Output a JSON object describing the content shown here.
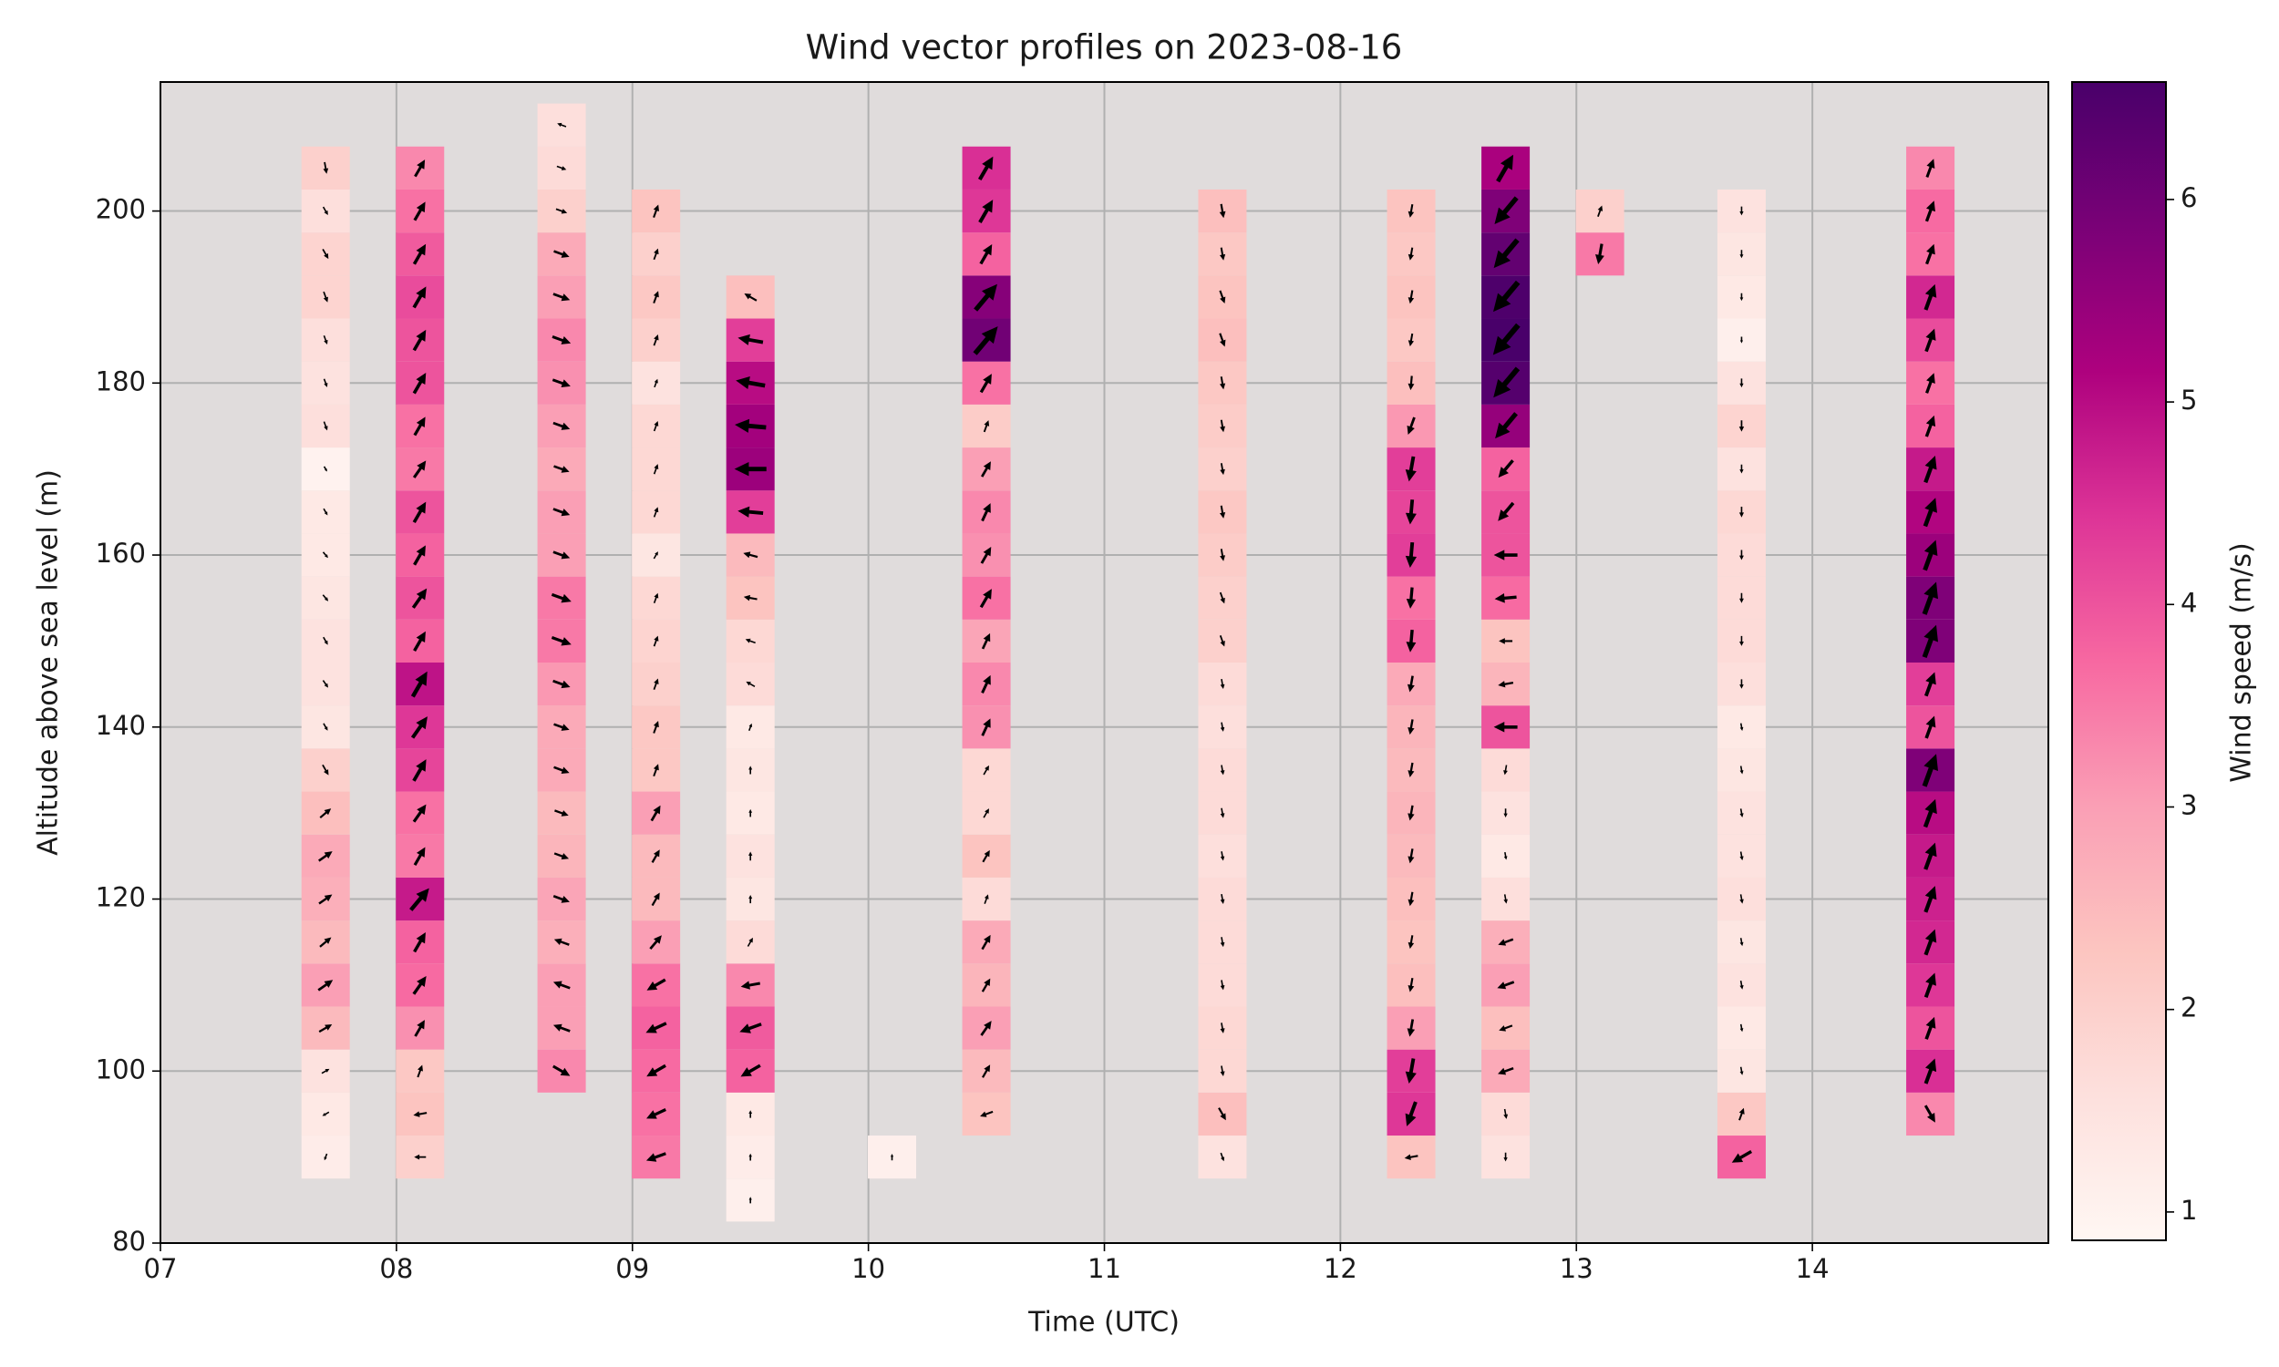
{
  "chart_data": {
    "type": "wind-profile",
    "title": "Wind vector profiles on 2023-08-16",
    "xlabel": "Time (UTC)",
    "ylabel": "Altitude above sea level (m)",
    "colorbar_label": "Wind speed (m/s)",
    "colormap": "RdPu",
    "clim": [
      0.86,
      6.58
    ],
    "cticks": [
      1,
      2,
      3,
      4,
      5,
      6
    ],
    "xlim": [
      7,
      15
    ],
    "xticks": [
      {
        "value": 7,
        "label": "07"
      },
      {
        "value": 8,
        "label": "08"
      },
      {
        "value": 9,
        "label": "09"
      },
      {
        "value": 10,
        "label": "10"
      },
      {
        "value": 11,
        "label": "11"
      },
      {
        "value": 12,
        "label": "12"
      },
      {
        "value": 13,
        "label": "13"
      },
      {
        "value": 14,
        "label": "14"
      }
    ],
    "ylim": [
      80,
      215
    ],
    "yticks": [
      80,
      100,
      120,
      140,
      160,
      180,
      200
    ],
    "grid": true,
    "profiles": [
      {
        "time": 7.7,
        "altitudes": [
          90,
          95,
          100,
          105,
          110,
          115,
          120,
          125,
          130,
          135,
          140,
          145,
          150,
          155,
          160,
          165,
          170,
          175,
          180,
          185,
          190,
          195,
          200,
          205
        ],
        "speeds": [
          1.2,
          1.3,
          1.5,
          2.5,
          3.0,
          2.5,
          2.7,
          2.8,
          2.4,
          2.0,
          1.4,
          1.5,
          1.5,
          1.4,
          1.3,
          1.3,
          1.0,
          1.6,
          1.5,
          1.6,
          1.9,
          1.9,
          1.6,
          2.0
        ],
        "directions": [
          200,
          240,
          60,
          60,
          55,
          50,
          55,
          55,
          50,
          150,
          150,
          145,
          150,
          140,
          140,
          150,
          150,
          160,
          160,
          160,
          160,
          150,
          150,
          170
        ]
      },
      {
        "time": 8.1,
        "altitudes": [
          90,
          95,
          100,
          105,
          110,
          115,
          120,
          125,
          130,
          135,
          140,
          145,
          150,
          155,
          160,
          165,
          170,
          175,
          180,
          185,
          190,
          195,
          200,
          205
        ],
        "speeds": [
          2.0,
          2.3,
          2.2,
          3.2,
          3.7,
          3.8,
          4.8,
          3.5,
          3.6,
          4.2,
          4.4,
          4.9,
          3.8,
          4.0,
          3.8,
          4.0,
          3.5,
          3.6,
          4.0,
          4.0,
          4.1,
          3.9,
          3.6,
          3.3
        ],
        "directions": [
          270,
          260,
          20,
          30,
          35,
          30,
          40,
          30,
          35,
          30,
          35,
          30,
          30,
          35,
          30,
          30,
          35,
          30,
          30,
          30,
          30,
          30,
          30,
          30
        ]
      },
      {
        "time": 8.7,
        "altitudes": [
          100,
          105,
          110,
          115,
          120,
          125,
          130,
          135,
          140,
          145,
          150,
          155,
          160,
          165,
          170,
          175,
          180,
          185,
          190,
          195,
          200,
          205,
          210
        ],
        "speeds": [
          3.3,
          3.0,
          3.0,
          2.7,
          2.9,
          2.6,
          2.5,
          2.8,
          2.8,
          3.1,
          3.5,
          3.5,
          3.0,
          3.0,
          2.8,
          3.0,
          3.2,
          3.3,
          3.0,
          2.8,
          2.0,
          1.7,
          1.6
        ],
        "directions": [
          120,
          290,
          290,
          290,
          110,
          110,
          110,
          110,
          110,
          110,
          110,
          110,
          110,
          110,
          110,
          110,
          110,
          110,
          110,
          110,
          110,
          110,
          290
        ]
      },
      {
        "time": 9.1,
        "altitudes": [
          90,
          95,
          100,
          105,
          110,
          115,
          120,
          125,
          130,
          135,
          140,
          145,
          150,
          155,
          160,
          165,
          170,
          175,
          180,
          185,
          190,
          195,
          200
        ],
        "speeds": [
          3.5,
          3.6,
          3.7,
          3.8,
          3.6,
          3.0,
          2.5,
          2.5,
          3.0,
          2.2,
          2.2,
          2.0,
          1.9,
          1.8,
          1.4,
          1.8,
          1.8,
          1.8,
          1.5,
          2.0,
          2.2,
          2.0,
          2.3
        ],
        "directions": [
          250,
          245,
          240,
          245,
          240,
          40,
          30,
          30,
          30,
          20,
          20,
          20,
          20,
          20,
          30,
          20,
          20,
          20,
          20,
          20,
          20,
          20,
          20
        ]
      },
      {
        "time": 9.5,
        "altitudes": [
          85,
          90,
          95,
          100,
          105,
          110,
          115,
          120,
          125,
          130,
          135,
          140,
          145,
          150,
          155,
          160,
          165,
          170,
          175,
          180,
          185,
          190
        ],
        "speeds": [
          1.1,
          1.2,
          1.3,
          3.8,
          3.9,
          3.3,
          1.7,
          1.4,
          1.5,
          1.3,
          1.4,
          1.3,
          1.7,
          1.8,
          2.3,
          2.5,
          4.3,
          5.4,
          5.3,
          5.0,
          4.3,
          2.4
        ],
        "directions": [
          0,
          0,
          0,
          240,
          250,
          260,
          30,
          0,
          0,
          0,
          0,
          20,
          300,
          290,
          280,
          285,
          275,
          270,
          275,
          280,
          280,
          300
        ]
      },
      {
        "time": 10.1,
        "altitudes": [
          90
        ],
        "speeds": [
          1.1
        ],
        "directions": [
          0
        ]
      },
      {
        "time": 10.5,
        "altitudes": [
          95,
          100,
          105,
          110,
          115,
          120,
          125,
          130,
          135,
          140,
          145,
          150,
          155,
          160,
          165,
          170,
          175,
          180,
          185,
          190,
          195,
          200,
          205
        ],
        "speeds": [
          2.3,
          2.5,
          3.0,
          2.6,
          2.8,
          1.7,
          2.3,
          1.8,
          1.8,
          3.2,
          3.3,
          2.9,
          3.6,
          3.2,
          3.3,
          3.0,
          2.1,
          3.6,
          6.0,
          5.7,
          3.8,
          4.4,
          4.5
        ],
        "directions": [
          250,
          30,
          35,
          30,
          30,
          20,
          30,
          30,
          30,
          25,
          25,
          25,
          30,
          30,
          25,
          30,
          20,
          30,
          40,
          40,
          30,
          30,
          30
        ]
      },
      {
        "time": 11.5,
        "altitudes": [
          90,
          95,
          100,
          105,
          110,
          115,
          120,
          125,
          130,
          135,
          140,
          145,
          150,
          155,
          160,
          165,
          170,
          175,
          180,
          185,
          190,
          195,
          200
        ],
        "speeds": [
          1.5,
          2.4,
          1.8,
          1.8,
          1.7,
          1.7,
          1.7,
          1.6,
          1.7,
          1.7,
          1.6,
          1.7,
          2.0,
          2.0,
          2.1,
          2.2,
          2.0,
          2.1,
          2.2,
          2.4,
          2.3,
          2.2,
          2.4
        ],
        "directions": [
          160,
          150,
          170,
          170,
          170,
          170,
          170,
          170,
          170,
          170,
          170,
          170,
          160,
          160,
          170,
          170,
          170,
          170,
          170,
          160,
          160,
          170,
          170
        ]
      },
      {
        "time": 12.3,
        "altitudes": [
          90,
          95,
          100,
          105,
          110,
          115,
          120,
          125,
          130,
          135,
          140,
          145,
          150,
          155,
          160,
          165,
          170,
          175,
          180,
          185,
          190,
          195,
          200
        ],
        "speeds": [
          2.3,
          4.4,
          4.3,
          3.0,
          2.4,
          2.3,
          2.4,
          2.5,
          2.6,
          2.5,
          2.6,
          2.8,
          3.8,
          3.6,
          4.3,
          4.2,
          4.3,
          3.1,
          2.4,
          2.2,
          2.3,
          2.2,
          2.3
        ],
        "directions": [
          260,
          200,
          190,
          190,
          190,
          190,
          190,
          190,
          190,
          190,
          190,
          190,
          185,
          185,
          185,
          185,
          190,
          200,
          185,
          190,
          190,
          190,
          190
        ]
      },
      {
        "time": 12.7,
        "altitudes": [
          90,
          95,
          100,
          105,
          110,
          115,
          120,
          125,
          130,
          135,
          140,
          145,
          150,
          155,
          160,
          165,
          170,
          175,
          180,
          185,
          190,
          195,
          200,
          205
        ],
        "speeds": [
          1.5,
          1.7,
          2.8,
          2.4,
          3.0,
          2.7,
          1.6,
          1.3,
          1.5,
          1.7,
          4.0,
          2.6,
          2.3,
          3.7,
          4.0,
          4.0,
          3.8,
          5.5,
          6.4,
          6.6,
          6.5,
          6.2,
          5.8,
          5.2
        ],
        "directions": [
          180,
          170,
          250,
          250,
          250,
          250,
          170,
          170,
          180,
          190,
          270,
          260,
          270,
          265,
          270,
          220,
          220,
          220,
          220,
          220,
          220,
          220,
          220,
          30
        ]
      },
      {
        "time": 13.1,
        "altitudes": [
          195,
          200
        ],
        "speeds": [
          3.5,
          2.0
        ],
        "directions": [
          190,
          20
        ]
      },
      {
        "time": 13.7,
        "altitudes": [
          90,
          95,
          100,
          105,
          110,
          115,
          120,
          125,
          130,
          135,
          140,
          145,
          150,
          155,
          160,
          165,
          170,
          175,
          180,
          185,
          190,
          195,
          200
        ],
        "speeds": [
          3.8,
          2.2,
          1.4,
          1.3,
          1.5,
          1.4,
          1.6,
          1.5,
          1.5,
          1.4,
          1.3,
          1.6,
          1.7,
          1.7,
          1.7,
          1.8,
          1.5,
          1.9,
          1.5,
          1.1,
          1.3,
          1.4,
          1.5
        ],
        "directions": [
          240,
          20,
          170,
          170,
          170,
          170,
          170,
          170,
          170,
          170,
          170,
          180,
          180,
          180,
          180,
          180,
          180,
          180,
          180,
          180,
          180,
          180,
          180
        ]
      },
      {
        "time": 14.5,
        "altitudes": [
          95,
          100,
          105,
          110,
          115,
          120,
          125,
          130,
          135,
          140,
          145,
          150,
          155,
          160,
          165,
          170,
          175,
          180,
          185,
          190,
          195,
          200,
          205
        ],
        "speeds": [
          3.3,
          4.5,
          4.0,
          4.4,
          4.6,
          4.7,
          4.8,
          5.0,
          5.8,
          4.0,
          4.3,
          5.8,
          5.8,
          5.4,
          5.1,
          4.8,
          3.8,
          3.6,
          4.1,
          4.6,
          3.6,
          3.7,
          3.3
        ],
        "directions": [
          150,
          20,
          20,
          20,
          20,
          20,
          20,
          20,
          20,
          20,
          20,
          20,
          20,
          20,
          20,
          20,
          20,
          20,
          20,
          20,
          20,
          20,
          20
        ]
      }
    ]
  }
}
